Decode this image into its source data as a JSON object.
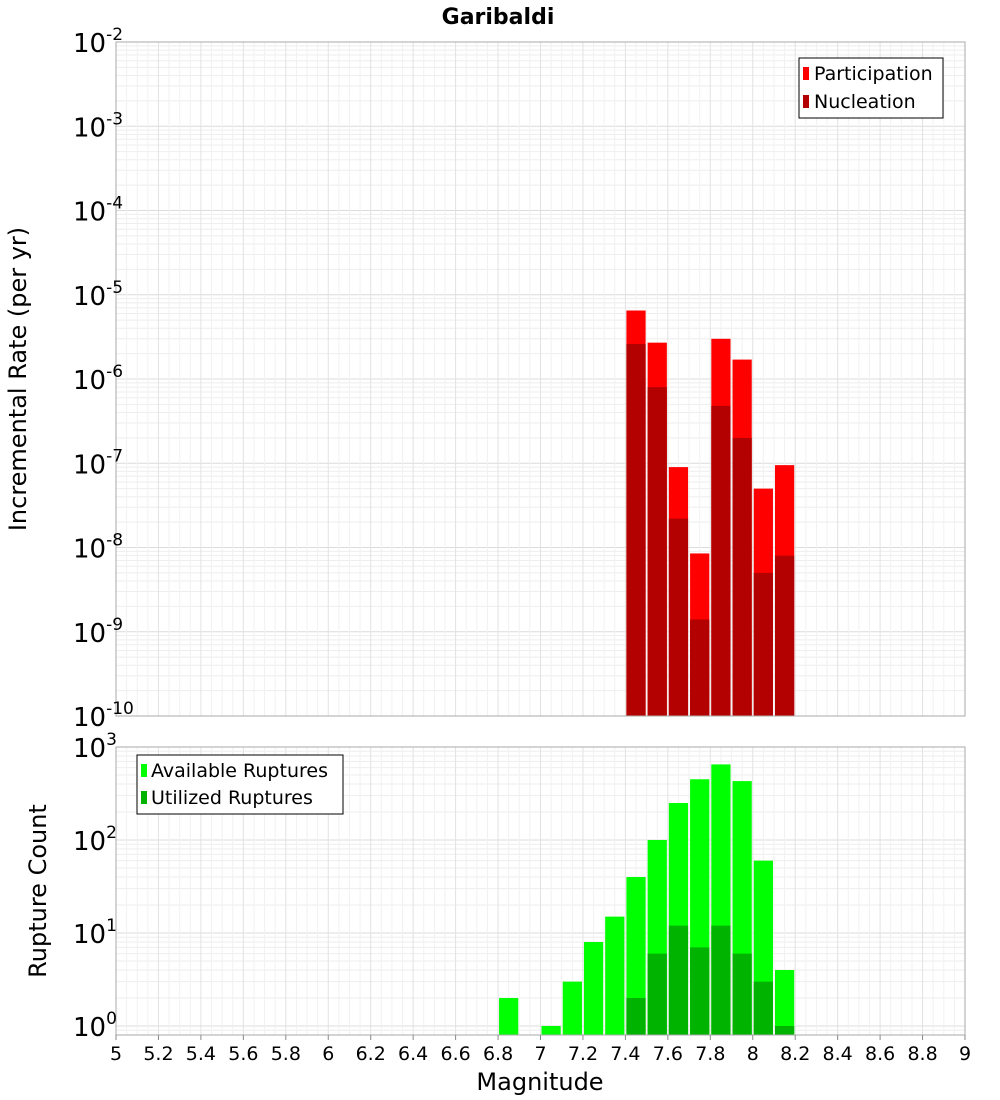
{
  "title": "Garibaldi",
  "xlabel": "Magnitude",
  "x_ticks": [
    "5",
    "5.2",
    "5.4",
    "5.6",
    "5.8",
    "6",
    "6.2",
    "6.4",
    "6.6",
    "6.8",
    "7",
    "7.2",
    "7.4",
    "7.6",
    "7.8",
    "8",
    "8.2",
    "8.4",
    "8.6",
    "8.8",
    "9"
  ],
  "colors": {
    "participation": "#ff0000",
    "nucleation": "#b30000",
    "available": "#00ff00",
    "utilized": "#00b300",
    "grid": "#e6e6e6",
    "frame": "#aaaaaa"
  },
  "chart_data": [
    {
      "type": "bar",
      "title": "Garibaldi",
      "xlabel": "Magnitude",
      "ylabel": "Incremental Rate (per yr)",
      "xlim": [
        5,
        9
      ],
      "yscale": "log",
      "ylim": [
        1e-10,
        0.01
      ],
      "y_ticks": [
        {
          "base": "10",
          "exp": "-10"
        },
        {
          "base": "10",
          "exp": "-9"
        },
        {
          "base": "10",
          "exp": "-8"
        },
        {
          "base": "10",
          "exp": "-7"
        },
        {
          "base": "10",
          "exp": "-6"
        },
        {
          "base": "10",
          "exp": "-5"
        },
        {
          "base": "10",
          "exp": "-4"
        },
        {
          "base": "10",
          "exp": "-3"
        },
        {
          "base": "10",
          "exp": "-2"
        }
      ],
      "legend_position": "top-right",
      "grid": true,
      "x": [
        7.45,
        7.55,
        7.65,
        7.75,
        7.85,
        7.95,
        8.05,
        8.15
      ],
      "series": [
        {
          "name": "Participation",
          "values": [
            6.5e-06,
            2.7e-06,
            9e-08,
            8.5e-09,
            3e-06,
            1.7e-06,
            5e-08,
            9.5e-08
          ]
        },
        {
          "name": "Nucleation",
          "values": [
            2.6e-06,
            8e-07,
            2.2e-08,
            1.4e-09,
            4.8e-07,
            2e-07,
            5e-09,
            8e-09
          ]
        }
      ]
    },
    {
      "type": "bar",
      "xlabel": "Magnitude",
      "ylabel": "Rupture Count",
      "xlim": [
        5,
        9
      ],
      "yscale": "log",
      "ylim": [
        0.8,
        1000
      ],
      "y_ticks": [
        {
          "base": "10",
          "exp": "0"
        },
        {
          "base": "10",
          "exp": "1"
        },
        {
          "base": "10",
          "exp": "2"
        },
        {
          "base": "10",
          "exp": "3"
        }
      ],
      "legend_position": "top-left",
      "grid": true,
      "x": [
        6.85,
        7.05,
        7.15,
        7.25,
        7.35,
        7.45,
        7.55,
        7.65,
        7.75,
        7.85,
        7.95,
        8.05,
        8.15
      ],
      "series": [
        {
          "name": "Available Ruptures",
          "values": [
            2,
            1,
            3,
            8,
            15,
            40,
            100,
            250,
            450,
            650,
            430,
            60,
            4
          ]
        },
        {
          "name": "Utilized Ruptures",
          "values": [
            0,
            0,
            0,
            0,
            0,
            2,
            6,
            12,
            7,
            12,
            6,
            3,
            1
          ]
        }
      ]
    }
  ]
}
